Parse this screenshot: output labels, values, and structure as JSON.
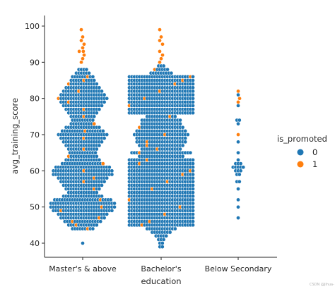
{
  "chart_data": {
    "type": "scatter",
    "subtype": "swarm",
    "title": "",
    "xlabel": "education",
    "ylabel": "avg_training_score",
    "categories": [
      "Master's & above",
      "Bachelor's",
      "Below Secondary"
    ],
    "ylim": [
      37,
      102
    ],
    "yticks": [
      40,
      50,
      60,
      70,
      80,
      90,
      100
    ],
    "grid": false,
    "legend": {
      "title": "is_promoted",
      "placement": "right",
      "entries": [
        {
          "label": "0",
          "color": "#1f77b4"
        },
        {
          "label": "1",
          "color": "#ff7f0e"
        }
      ]
    },
    "series": [
      {
        "label": "0",
        "color": "#1f77b4",
        "profiles": {
          "Master's & above": [
            [
              40,
              1
            ],
            [
              44,
              9
            ],
            [
              45,
              12
            ],
            [
              46,
              15
            ],
            [
              47,
              18
            ],
            [
              48,
              20
            ],
            [
              49,
              24
            ],
            [
              50,
              26
            ],
            [
              51,
              26
            ],
            [
              52,
              23
            ],
            [
              53,
              16
            ],
            [
              54,
              12
            ],
            [
              55,
              14
            ],
            [
              56,
              16
            ],
            [
              57,
              18
            ],
            [
              58,
              20
            ],
            [
              59,
              24
            ],
            [
              60,
              24
            ],
            [
              61,
              22
            ],
            [
              62,
              17
            ],
            [
              63,
              14
            ],
            [
              64,
              12
            ],
            [
              65,
              11
            ],
            [
              66,
              12
            ],
            [
              67,
              14
            ],
            [
              68,
              16
            ],
            [
              69,
              18
            ],
            [
              70,
              20
            ],
            [
              71,
              17
            ],
            [
              72,
              14
            ],
            [
              73,
              10
            ],
            [
              74,
              9
            ],
            [
              75,
              10
            ],
            [
              76,
              12
            ],
            [
              77,
              14
            ],
            [
              78,
              16
            ],
            [
              79,
              18
            ],
            [
              80,
              20
            ],
            [
              81,
              18
            ],
            [
              82,
              16
            ],
            [
              83,
              14
            ],
            [
              84,
              12
            ],
            [
              85,
              10
            ],
            [
              86,
              9
            ],
            [
              87,
              6
            ],
            [
              88,
              4
            ]
          ],
          "Bachelor's": [
            [
              39,
              2
            ],
            [
              40,
              2
            ],
            [
              41,
              3
            ],
            [
              42,
              5
            ],
            [
              43,
              8
            ],
            [
              44,
              12
            ],
            [
              45,
              26
            ],
            [
              46,
              26
            ],
            [
              47,
              26
            ],
            [
              48,
              26
            ],
            [
              49,
              26
            ],
            [
              50,
              26
            ],
            [
              51,
              26
            ],
            [
              52,
              26
            ],
            [
              53,
              26
            ],
            [
              54,
              26
            ],
            [
              55,
              26
            ],
            [
              56,
              26
            ],
            [
              57,
              26
            ],
            [
              58,
              26
            ],
            [
              59,
              26
            ],
            [
              60,
              26
            ],
            [
              61,
              26
            ],
            [
              62,
              26
            ],
            [
              63,
              26
            ],
            [
              64,
              18
            ],
            [
              65,
              24
            ],
            [
              66,
              16
            ],
            [
              67,
              18
            ],
            [
              68,
              20
            ],
            [
              69,
              20
            ],
            [
              70,
              22
            ],
            [
              71,
              20
            ],
            [
              72,
              18
            ],
            [
              73,
              16
            ],
            [
              74,
              16
            ],
            [
              75,
              12
            ],
            [
              76,
              26
            ],
            [
              77,
              26
            ],
            [
              78,
              26
            ],
            [
              79,
              26
            ],
            [
              80,
              26
            ],
            [
              81,
              26
            ],
            [
              82,
              26
            ],
            [
              83,
              26
            ],
            [
              84,
              26
            ],
            [
              85,
              26
            ],
            [
              86,
              26
            ],
            [
              87,
              9
            ],
            [
              88,
              6
            ],
            [
              89,
              3
            ]
          ],
          "Below Secondary": [
            [
              47,
              1
            ],
            [
              50,
              1
            ],
            [
              52,
              1
            ],
            [
              55,
              1
            ],
            [
              57,
              2
            ],
            [
              59,
              2
            ],
            [
              60,
              3
            ],
            [
              61,
              5
            ],
            [
              62,
              3
            ],
            [
              63,
              1
            ],
            [
              65,
              1
            ],
            [
              68,
              1
            ],
            [
              70,
              1
            ],
            [
              73,
              1
            ],
            [
              74,
              2
            ],
            [
              78,
              1
            ],
            [
              81,
              1
            ]
          ]
        }
      },
      {
        "label": "1",
        "color": "#ff7f0e",
        "values": {
          "Master's & above": [
            44,
            45,
            46,
            47,
            49,
            50,
            52,
            55,
            57,
            58,
            60,
            62,
            64,
            66,
            69,
            71,
            73,
            75,
            77,
            79,
            80,
            82,
            84,
            85,
            86,
            90,
            91,
            92,
            93,
            93,
            94,
            95,
            96,
            97,
            99
          ],
          "Bachelor's": [
            45,
            46,
            48,
            50,
            52,
            55,
            57,
            59,
            60,
            62,
            63,
            65,
            66,
            67,
            68,
            70,
            72,
            75,
            78,
            80,
            82,
            84,
            85,
            86,
            88,
            90,
            91,
            92,
            93,
            95,
            96,
            97,
            99
          ],
          "Below Secondary": [
            70,
            79,
            80,
            82
          ]
        }
      }
    ]
  },
  "watermark": "CSDN @Jihua-"
}
